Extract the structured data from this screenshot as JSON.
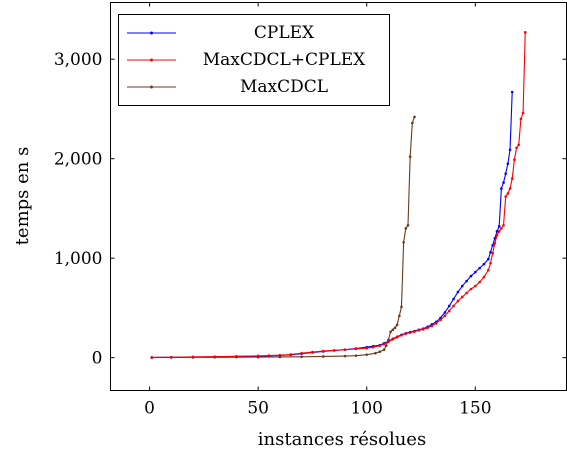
{
  "chart_data": {
    "type": "line",
    "title": "",
    "xlabel": "instances résolues",
    "ylabel": "temps en s",
    "xlim": [
      -18,
      192
    ],
    "ylim": [
      -330,
      3570
    ],
    "x_ticks": [
      0,
      50,
      100,
      150
    ],
    "x_tick_labels": [
      "0",
      "50",
      "100",
      "150"
    ],
    "y_ticks": [
      0,
      1000,
      2000,
      3000
    ],
    "y_tick_labels": [
      "0",
      "1,000",
      "2,000",
      "3,000"
    ],
    "grid": false,
    "legend_position": "top-left",
    "series": [
      {
        "name": "CPLEX",
        "color": "#0000ff",
        "points": [
          [
            1,
            2
          ],
          [
            10,
            4
          ],
          [
            20,
            6
          ],
          [
            30,
            9
          ],
          [
            40,
            12
          ],
          [
            50,
            16
          ],
          [
            55,
            19
          ],
          [
            60,
            22
          ],
          [
            65,
            28
          ],
          [
            70,
            40
          ],
          [
            75,
            52
          ],
          [
            80,
            62
          ],
          [
            85,
            72
          ],
          [
            90,
            80
          ],
          [
            95,
            92
          ],
          [
            100,
            105
          ],
          [
            103,
            115
          ],
          [
            106,
            125
          ],
          [
            108,
            145
          ],
          [
            110,
            165
          ],
          [
            112,
            190
          ],
          [
            114,
            210
          ],
          [
            116,
            230
          ],
          [
            118,
            245
          ],
          [
            120,
            258
          ],
          [
            122,
            268
          ],
          [
            124,
            280
          ],
          [
            126,
            292
          ],
          [
            128,
            310
          ],
          [
            130,
            335
          ],
          [
            132,
            360
          ],
          [
            134,
            400
          ],
          [
            136,
            455
          ],
          [
            138,
            520
          ],
          [
            140,
            590
          ],
          [
            142,
            660
          ],
          [
            144,
            720
          ],
          [
            146,
            770
          ],
          [
            148,
            820
          ],
          [
            150,
            860
          ],
          [
            152,
            900
          ],
          [
            154,
            940
          ],
          [
            156,
            990
          ],
          [
            157,
            1060
          ],
          [
            158,
            1130
          ],
          [
            159,
            1200
          ],
          [
            160,
            1270
          ],
          [
            161,
            1320
          ],
          [
            162,
            1700
          ],
          [
            163,
            1760
          ],
          [
            164,
            1850
          ],
          [
            165,
            1950
          ],
          [
            166,
            2090
          ],
          [
            167,
            2670
          ]
        ]
      },
      {
        "name": "MaxCDCL+CPLEX",
        "color": "#ff0000",
        "points": [
          [
            1,
            2
          ],
          [
            10,
            4
          ],
          [
            20,
            7
          ],
          [
            30,
            10
          ],
          [
            40,
            14
          ],
          [
            50,
            18
          ],
          [
            55,
            21
          ],
          [
            60,
            25
          ],
          [
            65,
            32
          ],
          [
            70,
            45
          ],
          [
            75,
            56
          ],
          [
            80,
            66
          ],
          [
            85,
            74
          ],
          [
            90,
            80
          ],
          [
            95,
            88
          ],
          [
            100,
            95
          ],
          [
            103,
            105
          ],
          [
            106,
            120
          ],
          [
            108,
            135
          ],
          [
            110,
            160
          ],
          [
            112,
            185
          ],
          [
            114,
            205
          ],
          [
            116,
            225
          ],
          [
            118,
            240
          ],
          [
            120,
            252
          ],
          [
            122,
            262
          ],
          [
            124,
            275
          ],
          [
            126,
            285
          ],
          [
            128,
            300
          ],
          [
            130,
            320
          ],
          [
            132,
            345
          ],
          [
            134,
            380
          ],
          [
            136,
            420
          ],
          [
            138,
            470
          ],
          [
            140,
            520
          ],
          [
            142,
            570
          ],
          [
            144,
            610
          ],
          [
            146,
            650
          ],
          [
            148,
            690
          ],
          [
            150,
            720
          ],
          [
            152,
            760
          ],
          [
            154,
            810
          ],
          [
            156,
            880
          ],
          [
            157,
            950
          ],
          [
            158,
            1050
          ],
          [
            159,
            1150
          ],
          [
            160,
            1230
          ],
          [
            161,
            1270
          ],
          [
            162,
            1300
          ],
          [
            163,
            1330
          ],
          [
            164,
            1620
          ],
          [
            165,
            1650
          ],
          [
            166,
            1700
          ],
          [
            167,
            1800
          ],
          [
            168,
            1990
          ],
          [
            169,
            2110
          ],
          [
            170,
            2140
          ],
          [
            171,
            2400
          ],
          [
            172,
            2460
          ],
          [
            173,
            3270
          ]
        ]
      },
      {
        "name": "MaxCDCL",
        "color": "#6b3a1f",
        "points": [
          [
            1,
            1
          ],
          [
            10,
            2
          ],
          [
            20,
            3
          ],
          [
            30,
            4
          ],
          [
            40,
            5
          ],
          [
            50,
            6
          ],
          [
            60,
            7
          ],
          [
            70,
            9
          ],
          [
            80,
            12
          ],
          [
            90,
            16
          ],
          [
            95,
            20
          ],
          [
            100,
            30
          ],
          [
            104,
            45
          ],
          [
            106,
            60
          ],
          [
            108,
            80
          ],
          [
            109,
            120
          ],
          [
            110,
            180
          ],
          [
            111,
            260
          ],
          [
            112,
            280
          ],
          [
            113,
            300
          ],
          [
            114,
            330
          ],
          [
            115,
            420
          ],
          [
            116,
            510
          ],
          [
            117,
            1160
          ],
          [
            118,
            1300
          ],
          [
            119,
            1330
          ],
          [
            120,
            2020
          ],
          [
            121,
            2360
          ],
          [
            122,
            2420
          ]
        ]
      }
    ]
  }
}
